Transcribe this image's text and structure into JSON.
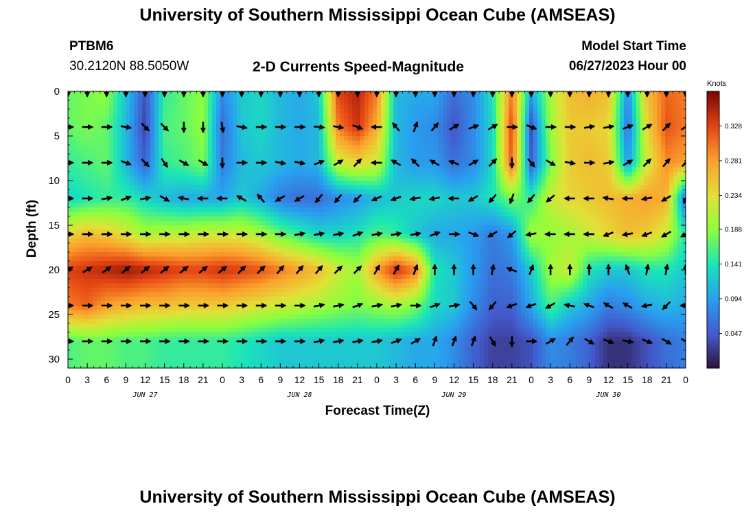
{
  "header": {
    "title": "University of Southern Mississippi Ocean Cube (AMSEAS)",
    "station": "PTBM6",
    "coords": "30.2120N  88.5050W",
    "subtitle": "2-D Currents Speed-Magnitude",
    "model_start_label": "Model Start Time",
    "model_start_value": "06/27/2023 Hour 00",
    "footer_title": "University of Southern Mississippi Ocean Cube (AMSEAS)"
  },
  "chart_data": {
    "type": "heatmap",
    "xlabel": "Forecast Time(Z)",
    "ylabel": "Depth (ft)",
    "x_range_hours": [
      0,
      96
    ],
    "ylim": [
      0,
      31
    ],
    "x_tick_labels": [
      "0",
      "3",
      "6",
      "9",
      "12",
      "15",
      "18",
      "21",
      "0",
      "3",
      "6",
      "9",
      "12",
      "15",
      "18",
      "21",
      "0",
      "3",
      "6",
      "9",
      "12",
      "15",
      "18",
      "21",
      "0",
      "3",
      "6",
      "9",
      "12",
      "15",
      "18",
      "21",
      "0"
    ],
    "y_ticks": [
      0,
      5,
      10,
      15,
      20,
      25,
      30
    ],
    "date_labels": [
      {
        "label": "JUN 27",
        "hour": 12
      },
      {
        "label": "JUN 28",
        "hour": 36
      },
      {
        "label": "JUN 29",
        "hour": 60
      },
      {
        "label": "JUN 30",
        "hour": 84
      }
    ],
    "colorbar": {
      "unit": "Knots",
      "ticks": [
        0.047,
        0.094,
        0.141,
        0.188,
        0.234,
        0.281,
        0.328
      ],
      "range": [
        0.0,
        0.375
      ]
    },
    "depth_rows_ft": [
      0,
      4,
      8,
      12,
      16,
      20,
      24,
      28
    ],
    "speed_columns_hours": [
      0,
      3,
      6,
      9,
      12,
      15,
      18,
      21,
      24,
      27,
      30,
      33,
      36,
      39,
      42,
      45,
      48,
      51,
      54,
      57,
      60,
      63,
      66,
      69,
      72,
      75,
      78,
      81,
      84,
      87,
      90,
      93,
      96
    ],
    "speed_knots": [
      [
        0.17,
        0.18,
        0.19,
        0.12,
        0.04,
        0.15,
        0.17,
        0.19,
        0.08,
        0.12,
        0.13,
        0.11,
        0.1,
        0.12,
        0.33,
        0.35,
        0.3,
        0.11,
        0.1,
        0.1,
        0.06,
        0.08,
        0.14,
        0.3,
        0.1,
        0.2,
        0.26,
        0.27,
        0.26,
        0.08,
        0.26,
        0.31,
        0.3
      ],
      [
        0.17,
        0.18,
        0.17,
        0.11,
        0.03,
        0.16,
        0.17,
        0.19,
        0.06,
        0.12,
        0.13,
        0.11,
        0.1,
        0.11,
        0.3,
        0.34,
        0.27,
        0.11,
        0.09,
        0.08,
        0.04,
        0.08,
        0.13,
        0.33,
        0.04,
        0.2,
        0.25,
        0.25,
        0.24,
        0.06,
        0.24,
        0.32,
        0.3
      ],
      [
        0.15,
        0.16,
        0.17,
        0.11,
        0.05,
        0.15,
        0.16,
        0.18,
        0.07,
        0.11,
        0.12,
        0.11,
        0.1,
        0.11,
        0.22,
        0.24,
        0.22,
        0.11,
        0.09,
        0.09,
        0.06,
        0.08,
        0.13,
        0.32,
        0.05,
        0.18,
        0.25,
        0.26,
        0.25,
        0.09,
        0.22,
        0.29,
        0.28
      ],
      [
        0.13,
        0.14,
        0.15,
        0.15,
        0.13,
        0.11,
        0.1,
        0.1,
        0.1,
        0.12,
        0.1,
        0.07,
        0.06,
        0.06,
        0.08,
        0.09,
        0.11,
        0.12,
        0.13,
        0.13,
        0.12,
        0.12,
        0.14,
        0.18,
        0.15,
        0.22,
        0.24,
        0.25,
        0.26,
        0.27,
        0.28,
        0.27,
        0.05
      ],
      [
        0.24,
        0.26,
        0.25,
        0.23,
        0.2,
        0.21,
        0.21,
        0.22,
        0.22,
        0.22,
        0.2,
        0.17,
        0.15,
        0.13,
        0.13,
        0.14,
        0.16,
        0.15,
        0.12,
        0.1,
        0.1,
        0.09,
        0.07,
        0.09,
        0.2,
        0.19,
        0.2,
        0.22,
        0.24,
        0.26,
        0.25,
        0.22,
        0.14
      ],
      [
        0.33,
        0.34,
        0.35,
        0.36,
        0.35,
        0.34,
        0.33,
        0.33,
        0.34,
        0.33,
        0.32,
        0.3,
        0.28,
        0.26,
        0.22,
        0.2,
        0.28,
        0.34,
        0.3,
        0.14,
        0.12,
        0.09,
        0.06,
        0.07,
        0.12,
        0.2,
        0.22,
        0.14,
        0.12,
        0.12,
        0.14,
        0.14,
        0.12
      ],
      [
        0.3,
        0.31,
        0.28,
        0.27,
        0.26,
        0.26,
        0.25,
        0.25,
        0.25,
        0.24,
        0.23,
        0.22,
        0.21,
        0.2,
        0.19,
        0.18,
        0.19,
        0.2,
        0.18,
        0.13,
        0.12,
        0.08,
        0.05,
        0.05,
        0.1,
        0.16,
        0.12,
        0.1,
        0.07,
        0.08,
        0.1,
        0.11,
        0.1
      ],
      [
        0.16,
        0.17,
        0.17,
        0.16,
        0.16,
        0.15,
        0.15,
        0.15,
        0.15,
        0.14,
        0.13,
        0.12,
        0.12,
        0.12,
        0.12,
        0.12,
        0.12,
        0.11,
        0.1,
        0.1,
        0.08,
        0.05,
        0.03,
        0.03,
        0.04,
        0.08,
        0.07,
        0.05,
        0.02,
        0.02,
        0.04,
        0.06,
        0.07
      ]
    ],
    "vector_directions_deg": [
      [
        180,
        180,
        180,
        180,
        180,
        180,
        180,
        180,
        180,
        180,
        180,
        180,
        180,
        180,
        180,
        180,
        180,
        180,
        180,
        180,
        180,
        180,
        180,
        180,
        180,
        180,
        180,
        180,
        180,
        180,
        180,
        180,
        180
      ],
      [
        90,
        90,
        90,
        100,
        135,
        135,
        180,
        180,
        170,
        100,
        90,
        90,
        90,
        95,
        100,
        110,
        270,
        320,
        20,
        40,
        60,
        70,
        60,
        90,
        110,
        90,
        90,
        80,
        80,
        70,
        60,
        45,
        60
      ],
      [
        90,
        90,
        90,
        110,
        135,
        145,
        120,
        120,
        180,
        90,
        90,
        100,
        100,
        70,
        60,
        45,
        270,
        300,
        315,
        300,
        290,
        60,
        45,
        180,
        140,
        120,
        100,
        90,
        80,
        60,
        45,
        40,
        45
      ],
      [
        90,
        90,
        80,
        70,
        80,
        120,
        280,
        270,
        270,
        300,
        320,
        240,
        240,
        220,
        220,
        225,
        245,
        250,
        260,
        260,
        270,
        240,
        220,
        200,
        220,
        230,
        270,
        270,
        280,
        270,
        260,
        240,
        200
      ],
      [
        90,
        90,
        90,
        90,
        90,
        90,
        90,
        90,
        90,
        90,
        90,
        90,
        80,
        80,
        80,
        70,
        80,
        80,
        80,
        70,
        90,
        110,
        240,
        230,
        260,
        270,
        270,
        270,
        250,
        260,
        250,
        240,
        240
      ],
      [
        60,
        60,
        55,
        50,
        50,
        50,
        50,
        50,
        50,
        45,
        45,
        40,
        40,
        40,
        45,
        45,
        30,
        30,
        20,
        0,
        0,
        0,
        10,
        290,
        20,
        0,
        0,
        0,
        0,
        340,
        10,
        10,
        0
      ],
      [
        90,
        90,
        90,
        90,
        90,
        90,
        90,
        90,
        90,
        90,
        90,
        90,
        90,
        80,
        80,
        70,
        80,
        80,
        90,
        70,
        80,
        140,
        220,
        250,
        250,
        240,
        280,
        290,
        300,
        300,
        260,
        225,
        270
      ],
      [
        90,
        90,
        90,
        90,
        90,
        90,
        90,
        90,
        90,
        90,
        90,
        90,
        90,
        80,
        80,
        80,
        80,
        70,
        60,
        20,
        20,
        20,
        150,
        180,
        90,
        60,
        40,
        120,
        110,
        100,
        110,
        120,
        120
      ]
    ]
  }
}
